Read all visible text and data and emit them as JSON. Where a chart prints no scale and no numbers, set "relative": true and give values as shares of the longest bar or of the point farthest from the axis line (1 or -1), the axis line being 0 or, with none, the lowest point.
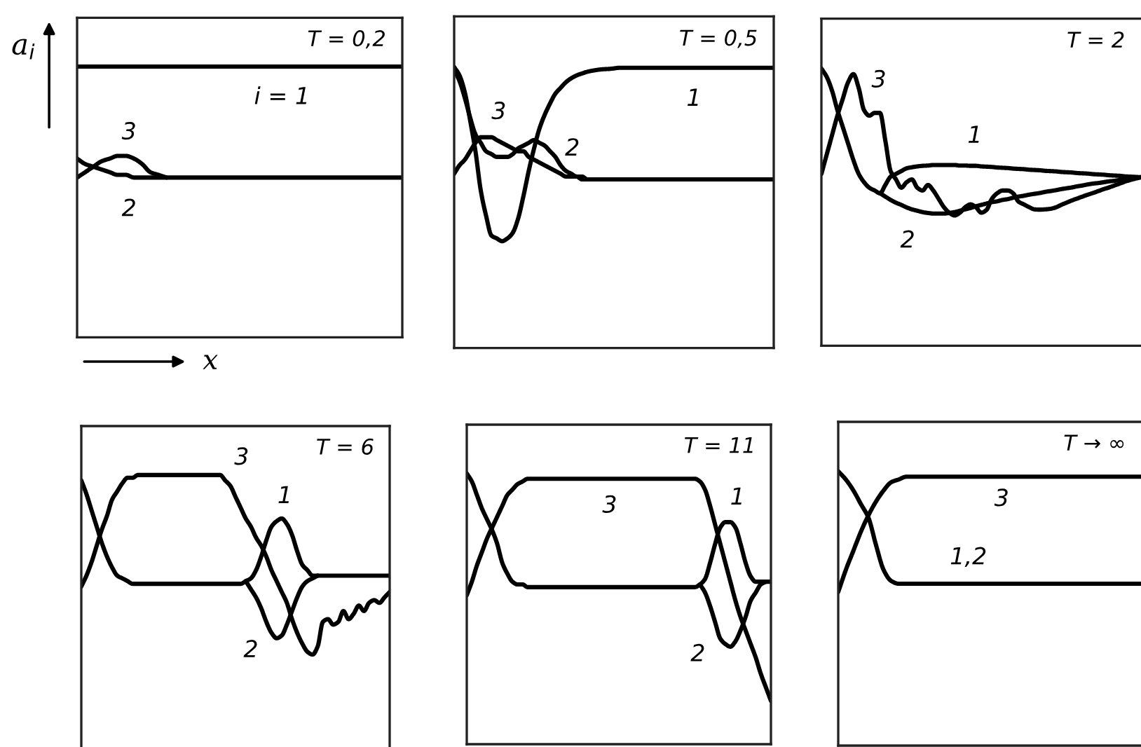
{
  "chart_data": [
    {
      "type": "line",
      "relative": true,
      "tick_labels": false,
      "title": "T = 0,2",
      "xlabel": "x",
      "ylabel": "a$_{i}$",
      "categories": [
        null,
        null,
        null,
        null,
        null,
        null,
        null,
        null,
        null,
        null,
        null,
        null,
        null,
        null,
        null,
        null,
        null,
        null,
        null,
        null,
        null,
        null,
        null,
        null,
        null,
        null,
        null,
        null,
        null,
        null,
        null,
        null,
        null,
        null,
        null,
        null,
        null,
        null,
        null,
        null,
        null
      ],
      "series": [
        {
          "name": "i = 1",
          "color": "#000000",
          "values": [
            1,
            1,
            1,
            1,
            1,
            1,
            1,
            1,
            1,
            1,
            1,
            1,
            1,
            1,
            1,
            1,
            1,
            1,
            1,
            1,
            1,
            1,
            1,
            1,
            1,
            1,
            1,
            1,
            1,
            1,
            1,
            1,
            1,
            1,
            1,
            1,
            1,
            1,
            1,
            1,
            1
          ]
        },
        {
          "name": "2",
          "color": "#000000",
          "values": [
            0.66,
            0.64,
            0.63,
            0.62,
            0.61,
            0.6,
            0.6,
            0.59,
            0.59,
            0.59,
            0.59,
            0.59,
            0.59,
            0.59,
            0.59,
            0.59,
            0.59,
            0.59,
            0.59,
            0.59,
            0.59,
            0.59,
            0.59,
            0.59,
            0.59,
            0.59,
            0.59,
            0.59,
            0.59,
            0.59,
            0.59,
            0.59,
            0.59,
            0.59,
            0.59,
            0.59,
            0.59,
            0.59,
            0.59,
            0.59,
            0.59
          ]
        },
        {
          "name": "3",
          "color": "#000000",
          "values": [
            0.59,
            0.61,
            0.63,
            0.65,
            0.66,
            0.67,
            0.67,
            0.66,
            0.64,
            0.61,
            0.6,
            0.59,
            null,
            null,
            null,
            null,
            null,
            null,
            null,
            null,
            null,
            null,
            null,
            null,
            null,
            null,
            null,
            null,
            null,
            null,
            null,
            null,
            null,
            null,
            null,
            null,
            null,
            null,
            null,
            null,
            null
          ]
        }
      ]
    },
    {
      "type": "line",
      "relative": true,
      "tick_labels": false,
      "title": "T = 0,5",
      "categories": [
        null,
        null,
        null,
        null,
        null,
        null,
        null,
        null,
        null,
        null,
        null,
        null,
        null,
        null,
        null,
        null,
        null,
        null,
        null,
        null,
        null,
        null,
        null,
        null,
        null,
        null,
        null,
        null,
        null,
        null,
        null,
        null,
        null,
        null,
        null,
        null,
        null,
        null,
        null,
        null,
        null,
        null,
        null,
        null,
        null,
        null,
        null,
        null,
        null,
        null,
        null,
        null,
        null,
        null,
        null,
        null,
        null,
        null,
        null,
        null,
        null
      ],
      "series": [
        {
          "name": "1",
          "color": "#000000",
          "values": [
            1,
            0.97,
            0.91,
            0.81,
            0.7,
            0.56,
            0.47,
            0.4,
            0.39,
            0.38,
            0.39,
            0.41,
            0.46,
            0.54,
            0.63,
            0.71,
            0.78,
            0.83,
            0.87,
            0.905,
            0.926,
            0.946,
            0.96,
            0.97,
            0.977,
            0.983,
            0.987,
            0.99,
            0.992,
            0.993,
            0.995,
            0.997,
            0.997,
            0.997,
            0.997,
            0.997,
            0.997,
            0.997,
            0.997,
            0.997,
            0.997,
            0.997,
            0.997,
            0.997,
            0.997,
            0.997,
            0.997,
            0.997,
            0.997,
            0.997,
            0.997,
            0.997,
            0.997,
            0.997,
            0.997,
            0.997,
            0.997,
            0.997,
            0.997,
            0.997,
            0.997
          ]
        },
        {
          "name": "2",
          "color": "#000000",
          "values": [
            0.99,
            0.95,
            0.89,
            0.82,
            0.76,
            0.73,
            0.7,
            0.69,
            0.68,
            0.68,
            0.68,
            0.69,
            0.71,
            0.72,
            0.73,
            0.74,
            0.73,
            0.72,
            0.7,
            0.68,
            0.65,
            0.63,
            0.62,
            0.61,
            0.61,
            0.6,
            0.6,
            0.6,
            0.6,
            0.6,
            0.6,
            0.6,
            0.6,
            0.6,
            0.6,
            0.6,
            0.6,
            0.6,
            0.6,
            0.6,
            0.6,
            0.6,
            0.6,
            0.6,
            0.6,
            0.6,
            0.6,
            0.6,
            0.6,
            0.6,
            0.6,
            0.6,
            0.6,
            0.6,
            0.6,
            0.6,
            0.6,
            0.6,
            0.6,
            0.6,
            0.6
          ]
        },
        {
          "name": "3",
          "color": "#000000",
          "values": [
            0.62,
            0.65,
            0.67,
            0.7,
            0.73,
            0.75,
            0.75,
            0.75,
            0.74,
            0.73,
            0.72,
            0.71,
            0.7,
            0.7,
            0.68,
            0.67,
            0.66,
            0.65,
            0.64,
            0.63,
            0.62,
            0.61,
            0.61,
            0.61,
            0.6,
            0.6,
            null,
            null,
            null,
            null,
            null,
            null,
            null,
            null,
            null,
            null,
            null,
            null,
            null,
            null,
            null,
            null,
            null,
            null,
            null,
            null,
            null,
            null,
            null,
            null,
            null,
            null,
            null,
            null,
            null,
            null,
            null,
            null,
            null,
            null,
            null
          ]
        }
      ]
    },
    {
      "type": "line",
      "relative": true,
      "tick_labels": false,
      "title": "T = 2",
      "categories": [
        null,
        null,
        null,
        null,
        null,
        null,
        null,
        null,
        null,
        null,
        null,
        null,
        null,
        null,
        null,
        null,
        null,
        null,
        null,
        null,
        null,
        null,
        null,
        null,
        null,
        null,
        null,
        null,
        null,
        null,
        null,
        null,
        null,
        null,
        null,
        null,
        null,
        null,
        null,
        null,
        null,
        null,
        null,
        null,
        null,
        null,
        null,
        null,
        null,
        null,
        null,
        null,
        null,
        null,
        null,
        null,
        null,
        null,
        null,
        null,
        null
      ],
      "series": [
        {
          "name": "1",
          "color": "#000000",
          "values": [
            1,
            0.97,
            0.92,
            0.85,
            0.79,
            0.73,
            0.67,
            0.62,
            0.59,
            0.57,
            0.56,
            0.55,
            0.58,
            0.61,
            0.62,
            0.63,
            0.64,
            0.644,
            0.647,
            0.649,
            0.65,
            0.652,
            0.652,
            0.652,
            0.652,
            0.652,
            0.65,
            0.65,
            0.649,
            0.649,
            0.647,
            0.646,
            0.645,
            0.643,
            0.642,
            0.641,
            0.639,
            0.638,
            0.637,
            0.635,
            0.634,
            0.633,
            0.631,
            0.63,
            0.629,
            0.627,
            0.626,
            0.625,
            0.623,
            0.622,
            0.621,
            0.619,
            0.618,
            0.617,
            0.615,
            0.614,
            0.613,
            0.611,
            0.61,
            0.609,
            0.608
          ]
        },
        {
          "name": "2",
          "color": "#000000",
          "values": [
            null,
            null,
            null,
            null,
            null,
            null,
            null,
            null,
            null,
            null,
            null,
            0.55,
            0.538,
            0.526,
            0.516,
            0.508,
            0.499,
            0.492,
            0.487,
            0.482,
            0.479,
            0.477,
            0.477,
            0.477,
            0.479,
            0.482,
            0.487,
            0.492,
            0.497,
            0.503,
            0.508,
            0.513,
            0.518,
            0.521,
            0.526,
            0.529,
            0.534,
            0.538,
            0.541,
            0.545,
            0.548,
            0.551,
            0.555,
            0.558,
            0.561,
            0.565,
            0.568,
            0.571,
            0.575,
            0.578,
            0.582,
            0.585,
            0.587,
            0.59,
            0.593,
            0.595,
            0.598,
            0.6,
            0.603,
            0.605,
            0.608
          ]
        },
        {
          "name": "3",
          "color": "#000000",
          "values": [
            0.62,
            0.69,
            0.76,
            0.83,
            0.89,
            0.95,
            0.98,
            0.93,
            0.85,
            0.83,
            0.84,
            0.84,
            0.74,
            0.63,
            0.6,
            0.57,
            0.59,
            0.6,
            0.57,
            0.56,
            0.58,
            0.56,
            0.53,
            0.5,
            0.48,
            0.47,
            0.48,
            0.5,
            0.51,
            0.5,
            0.48,
            0.49,
            0.53,
            0.55,
            0.56,
            0.56,
            0.55,
            0.52,
            0.51,
            0.5,
            0.492,
            0.491,
            0.492,
            0.494,
            0.499,
            0.508,
            0.516,
            0.524,
            0.531,
            0.538,
            0.545,
            0.551,
            0.558,
            0.565,
            0.571,
            0.578,
            0.585,
            0.592,
            0.598,
            0.603,
            0.608
          ]
        }
      ]
    },
    {
      "type": "line",
      "relative": true,
      "tick_labels": false,
      "title": "T = 6",
      "categories": [
        null,
        null,
        null,
        null,
        null,
        null,
        null,
        null,
        null,
        null,
        null,
        null,
        null,
        null,
        null,
        null,
        null,
        null,
        null,
        null,
        null,
        null,
        null,
        null,
        null,
        null,
        null,
        null,
        null,
        null,
        null,
        null,
        null,
        null,
        null,
        null,
        null,
        null,
        null,
        null,
        null,
        null,
        null,
        null,
        null,
        null,
        null,
        null,
        null,
        null,
        null,
        null,
        null,
        null,
        null,
        null,
        null,
        null,
        null,
        null,
        null
      ],
      "series": [
        {
          "name": "1",
          "color": "#000000",
          "values": [
            0.98,
            0.93,
            0.87,
            0.81,
            0.75,
            0.7,
            0.66,
            0.63,
            0.62,
            0.61,
            0.6,
            0.6,
            0.6,
            0.6,
            0.6,
            0.6,
            0.6,
            0.6,
            0.6,
            0.6,
            0.6,
            0.6,
            0.6,
            0.6,
            0.6,
            0.6,
            0.6,
            0.6,
            0.6,
            0.6,
            0.6,
            0.6,
            0.61,
            0.62,
            0.65,
            0.7,
            0.76,
            0.81,
            0.83,
            0.84,
            0.82,
            0.78,
            0.72,
            0.67,
            0.65,
            0.63,
            0.63,
            0.63,
            0.63,
            0.63,
            0.63,
            0.63,
            0.63,
            0.63,
            0.63,
            0.63,
            0.63,
            0.63,
            0.63,
            0.63,
            0.63
          ]
        },
        {
          "name": "2",
          "color": "#000000",
          "values": [
            null,
            null,
            null,
            null,
            null,
            null,
            null,
            null,
            null,
            null,
            null,
            null,
            null,
            null,
            null,
            null,
            null,
            null,
            null,
            null,
            null,
            null,
            null,
            null,
            null,
            null,
            null,
            null,
            null,
            null,
            null,
            null,
            0.61,
            0.58,
            0.55,
            0.51,
            0.46,
            0.42,
            0.4,
            0.41,
            0.45,
            0.5,
            0.55,
            0.59,
            0.61,
            0.62,
            0.63,
            null,
            null,
            null,
            null,
            null,
            null,
            null,
            null,
            null,
            null,
            null,
            null,
            null,
            null
          ]
        },
        {
          "name": "3",
          "color": "#000000",
          "values": [
            0.59,
            0.63,
            0.68,
            0.74,
            0.8,
            0.85,
            0.91,
            0.94,
            0.97,
            0.99,
            0.99,
            1,
            1,
            1,
            1,
            1,
            1,
            1,
            1,
            1,
            1,
            1,
            1,
            1,
            1,
            1,
            1,
            1,
            0.98,
            0.96,
            0.92,
            0.88,
            0.84,
            0.81,
            0.77,
            0.74,
            0.7,
            0.65,
            0.61,
            0.57,
            0.53,
            0.47,
            0.42,
            0.38,
            0.35,
            0.34,
            0.37,
            0.46,
            0.47,
            0.45,
            0.46,
            0.5,
            0.47,
            0.49,
            0.52,
            0.5,
            0.53,
            0.54,
            0.53,
            0.55,
            0.57
          ]
        }
      ]
    },
    {
      "type": "line",
      "relative": true,
      "tick_labels": false,
      "title": "T = 11",
      "categories": [
        null,
        null,
        null,
        null,
        null,
        null,
        null,
        null,
        null,
        null,
        null,
        null,
        null,
        null,
        null,
        null,
        null,
        null,
        null,
        null,
        null,
        null,
        null,
        null,
        null,
        null,
        null,
        null,
        null,
        null,
        null,
        null,
        null,
        null,
        null,
        null,
        null,
        null,
        null,
        null,
        null,
        null,
        null,
        null,
        null,
        null,
        null,
        null,
        null,
        null,
        null,
        null,
        null,
        null,
        null,
        null,
        null,
        null,
        null,
        null,
        null
      ],
      "series": [
        {
          "name": "1",
          "color": "#000000",
          "values": [
            1,
            0.97,
            0.92,
            0.87,
            0.83,
            0.79,
            0.74,
            0.67,
            0.63,
            0.6,
            0.59,
            0.59,
            0.58,
            0.58,
            0.58,
            0.58,
            0.58,
            0.58,
            0.58,
            0.58,
            0.58,
            0.58,
            0.58,
            0.58,
            0.58,
            0.58,
            0.58,
            0.58,
            0.58,
            0.58,
            0.58,
            0.58,
            0.58,
            0.58,
            0.58,
            0.58,
            0.58,
            0.58,
            0.58,
            0.58,
            0.58,
            0.58,
            0.58,
            0.58,
            0.58,
            0.58,
            0.59,
            0.61,
            0.67,
            0.74,
            0.8,
            0.82,
            0.82,
            0.8,
            0.74,
            0.67,
            0.62,
            0.6,
            0.6,
            0.6,
            0.6
          ]
        },
        {
          "name": "2",
          "color": "#000000",
          "values": [
            null,
            null,
            null,
            null,
            null,
            null,
            null,
            null,
            null,
            null,
            null,
            null,
            null,
            null,
            null,
            null,
            null,
            null,
            null,
            null,
            null,
            null,
            null,
            null,
            null,
            null,
            null,
            null,
            null,
            null,
            null,
            null,
            null,
            null,
            null,
            null,
            null,
            null,
            null,
            null,
            null,
            null,
            null,
            null,
            null,
            null,
            0.59,
            0.56,
            0.51,
            0.45,
            0.39,
            0.37,
            0.36,
            0.38,
            0.42,
            0.47,
            0.53,
            0.56,
            0.59,
            0.6,
            null
          ]
        },
        {
          "name": "3",
          "color": "#000000",
          "values": [
            0.55,
            0.6,
            0.66,
            0.71,
            0.76,
            0.8,
            0.84,
            0.88,
            0.92,
            0.94,
            0.96,
            0.97,
            0.98,
            0.98,
            0.98,
            0.98,
            0.98,
            0.98,
            0.98,
            0.98,
            0.98,
            0.98,
            0.98,
            0.98,
            0.98,
            0.98,
            0.98,
            0.98,
            0.98,
            0.98,
            0.98,
            0.98,
            0.98,
            0.98,
            0.98,
            0.98,
            0.98,
            0.98,
            0.98,
            0.98,
            0.98,
            0.98,
            0.98,
            0.98,
            0.98,
            0.98,
            0.97,
            0.94,
            0.88,
            0.81,
            0.74,
            0.67,
            0.6,
            0.53,
            0.47,
            0.42,
            0.37,
            0.32,
            0.26,
            0.21,
            0.16
          ]
        }
      ]
    },
    {
      "type": "line",
      "relative": true,
      "tick_labels": false,
      "title": "T → ∞",
      "categories": [
        null,
        null,
        null,
        null,
        null,
        null,
        null,
        null,
        null,
        null,
        null,
        null,
        null,
        null,
        null,
        null,
        null,
        null,
        null,
        null,
        null,
        null,
        null,
        null,
        null,
        null,
        null,
        null,
        null,
        null,
        null,
        null,
        null,
        null,
        null,
        null,
        null,
        null,
        null,
        null,
        null
      ],
      "series": [
        {
          "name": "1,2",
          "color": "#000000",
          "values": [
            1,
            0.97,
            0.93,
            0.88,
            0.83,
            0.73,
            0.64,
            0.6,
            0.59,
            0.59,
            0.59,
            0.59,
            0.59,
            0.59,
            0.59,
            0.59,
            0.59,
            0.59,
            0.59,
            0.59,
            0.59,
            0.59,
            0.59,
            0.59,
            0.59,
            0.59,
            0.59,
            0.59,
            0.59,
            0.59,
            0.59,
            0.59,
            0.59,
            0.59,
            0.59,
            0.59,
            0.59,
            0.59,
            0.59,
            0.59,
            0.59
          ]
        },
        {
          "name": "3",
          "color": "#000000",
          "values": [
            0.56,
            0.64,
            0.71,
            0.78,
            0.84,
            0.89,
            0.93,
            0.96,
            0.97,
            0.98,
            0.98,
            0.98,
            0.98,
            0.98,
            0.98,
            0.98,
            0.98,
            0.98,
            0.98,
            0.98,
            0.98,
            0.98,
            0.98,
            0.98,
            0.98,
            0.98,
            0.98,
            0.98,
            0.98,
            0.98,
            0.98,
            0.98,
            0.98,
            0.98,
            0.98,
            0.98,
            0.98,
            0.98,
            0.98,
            0.98,
            0.98
          ]
        }
      ]
    }
  ]
}
